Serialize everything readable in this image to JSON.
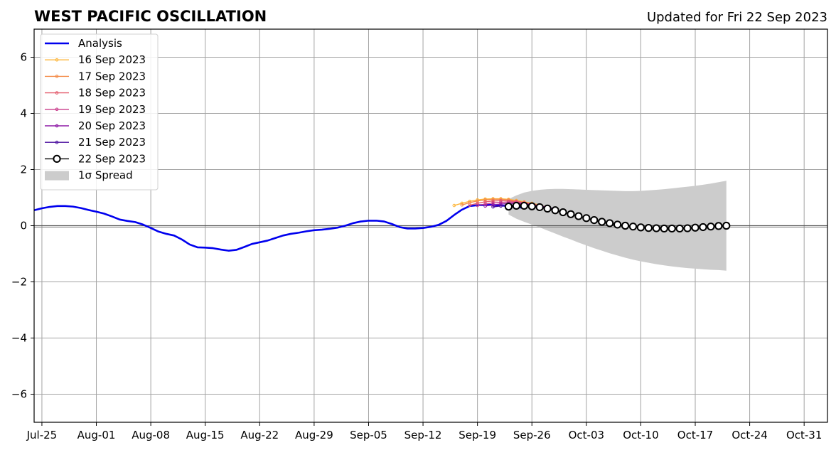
{
  "chart_data": {
    "type": "line",
    "title": "WEST PACIFIC OSCILLATION",
    "subtitle": "Updated for Fri 22 Sep 2023",
    "xlabel": "",
    "ylabel": "",
    "ylim": [
      -7,
      7
    ],
    "yticks": [
      -6,
      -4,
      -2,
      0,
      2,
      4,
      6
    ],
    "ytick_labels": [
      "−6",
      "−4",
      "−2",
      "0",
      "2",
      "4",
      "6"
    ],
    "xlim": [
      "2023-07-24",
      "2023-11-03"
    ],
    "xticks": [
      "2023-07-25",
      "2023-08-01",
      "2023-08-08",
      "2023-08-15",
      "2023-08-22",
      "2023-08-29",
      "2023-09-05",
      "2023-09-12",
      "2023-09-19",
      "2023-09-26",
      "2023-10-03",
      "2023-10-10",
      "2023-10-17",
      "2023-10-24",
      "2023-10-31"
    ],
    "xtick_labels": [
      "Jul-25",
      "Aug-01",
      "Aug-08",
      "Aug-15",
      "Aug-22",
      "Aug-29",
      "Sep-05",
      "Sep-12",
      "Sep-19",
      "Sep-26",
      "Oct-03",
      "Oct-10",
      "Oct-17",
      "Oct-24",
      "Oct-31"
    ],
    "grid": true,
    "legend_position": "top-left",
    "zero_line": true,
    "analysis": {
      "name": "Analysis",
      "color": "#0000ee",
      "start_date": "2023-07-24",
      "values": [
        0.55,
        0.62,
        0.67,
        0.7,
        0.7,
        0.68,
        0.63,
        0.56,
        0.5,
        0.43,
        0.33,
        0.22,
        0.17,
        0.13,
        0.04,
        -0.08,
        -0.21,
        -0.29,
        -0.35,
        -0.49,
        -0.67,
        -0.77,
        -0.78,
        -0.8,
        -0.85,
        -0.89,
        -0.86,
        -0.76,
        -0.65,
        -0.59,
        -0.53,
        -0.44,
        -0.35,
        -0.29,
        -0.25,
        -0.2,
        -0.16,
        -0.14,
        -0.11,
        -0.07,
        0.0,
        0.09,
        0.15,
        0.18,
        0.18,
        0.15,
        0.06,
        -0.05,
        -0.1,
        -0.1,
        -0.08,
        -0.04,
        0.03,
        0.17,
        0.38,
        0.57,
        0.7,
        0.73,
        0.74,
        0.74,
        0.72,
        0.7,
        0.67,
        0.63
      ]
    },
    "forecasts": [
      {
        "name": "16 Sep 2023",
        "color": "#fdb63b",
        "start_date": "2023-09-16",
        "values": [
          0.72,
          0.8,
          0.87,
          0.92,
          0.95,
          0.96,
          0.96,
          0.94,
          0.9,
          0.85,
          0.8,
          0.74
        ]
      },
      {
        "name": "17 Sep 2023",
        "color": "#f48c49",
        "start_date": "2023-09-17",
        "values": [
          0.74,
          0.82,
          0.88,
          0.92,
          0.94,
          0.94,
          0.92,
          0.88,
          0.83,
          0.78,
          0.72,
          0.66
        ]
      },
      {
        "name": "18 Sep 2023",
        "color": "#e35b6c",
        "start_date": "2023-09-18",
        "values": [
          0.73,
          0.8,
          0.85,
          0.88,
          0.89,
          0.88,
          0.86,
          0.82,
          0.77,
          0.71,
          0.65
        ]
      },
      {
        "name": "19 Sep 2023",
        "color": "#c83a8a",
        "start_date": "2023-09-19",
        "values": [
          0.72,
          0.77,
          0.81,
          0.83,
          0.84,
          0.83,
          0.8,
          0.76,
          0.71,
          0.65
        ]
      },
      {
        "name": "20 Sep 2023",
        "color": "#8e1aa6",
        "start_date": "2023-09-20",
        "values": [
          0.7,
          0.74,
          0.77,
          0.79,
          0.79,
          0.77,
          0.74,
          0.7,
          0.65,
          0.59
        ]
      },
      {
        "name": "21 Sep 2023",
        "color": "#4a0e9e",
        "start_date": "2023-09-21",
        "values": [
          0.67,
          0.7,
          0.72,
          0.73,
          0.72,
          0.7,
          0.67,
          0.63,
          0.58
        ]
      },
      {
        "name": "22 Sep 2023",
        "color": "#000000",
        "marker": "open-circle",
        "start_date": "2023-09-23",
        "values": [
          0.68,
          0.71,
          0.71,
          0.69,
          0.66,
          0.61,
          0.55,
          0.48,
          0.41,
          0.34,
          0.27,
          0.2,
          0.14,
          0.09,
          0.04,
          0.0,
          -0.03,
          -0.06,
          -0.08,
          -0.09,
          -0.1,
          -0.1,
          -0.1,
          -0.09,
          -0.07,
          -0.05,
          -0.03,
          -0.01,
          0.0
        ]
      }
    ],
    "spread": {
      "name": "1σ Spread",
      "color": "#cccccc",
      "start_date": "2023-09-23",
      "upper": [
        0.95,
        1.08,
        1.18,
        1.24,
        1.28,
        1.3,
        1.31,
        1.31,
        1.3,
        1.29,
        1.28,
        1.27,
        1.26,
        1.25,
        1.24,
        1.23,
        1.23,
        1.24,
        1.26,
        1.28,
        1.3,
        1.33,
        1.36,
        1.39,
        1.42,
        1.46,
        1.5,
        1.55,
        1.6
      ],
      "lower": [
        0.4,
        0.25,
        0.14,
        0.04,
        -0.06,
        -0.17,
        -0.28,
        -0.39,
        -0.49,
        -0.6,
        -0.7,
        -0.8,
        -0.89,
        -0.98,
        -1.06,
        -1.14,
        -1.21,
        -1.27,
        -1.32,
        -1.37,
        -1.41,
        -1.45,
        -1.48,
        -1.51,
        -1.53,
        -1.55,
        -1.57,
        -1.58,
        -1.6
      ]
    }
  }
}
